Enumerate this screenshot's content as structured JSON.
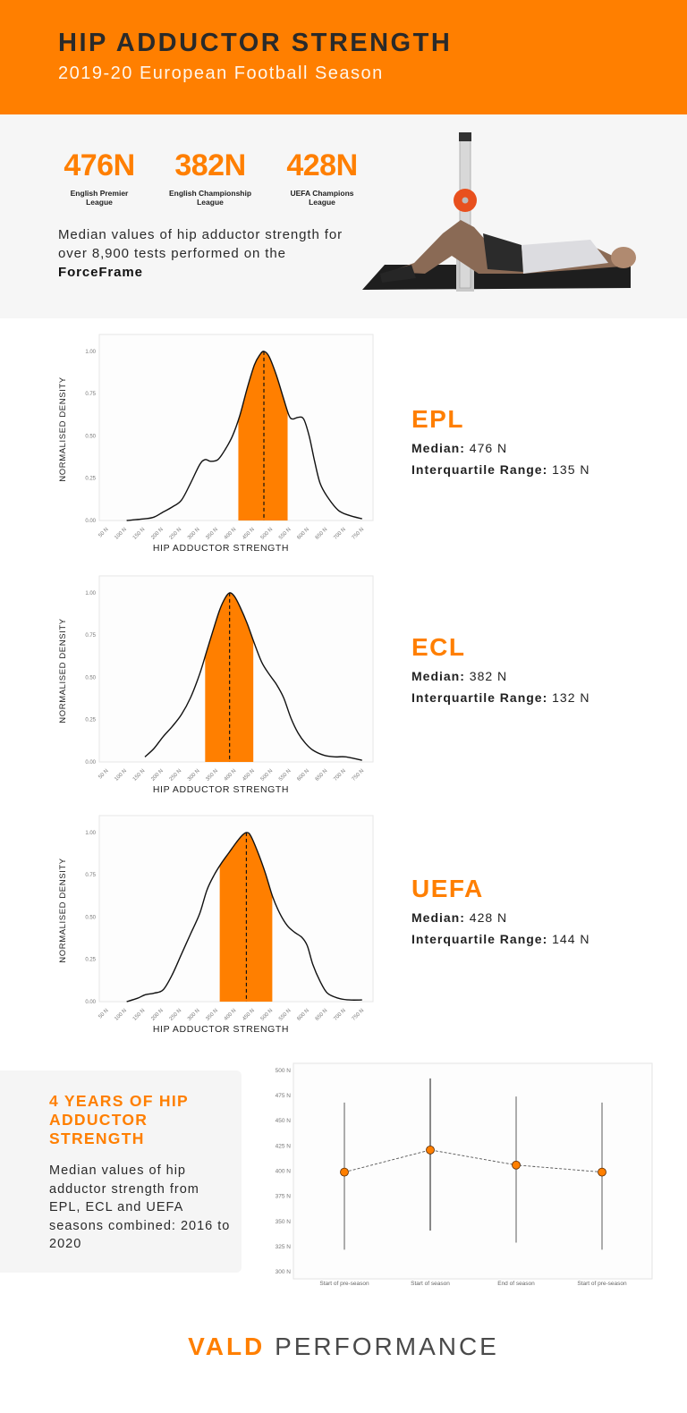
{
  "header": {
    "title": "HIP ADDUCTOR STRENGTH",
    "subtitle": "2019-20 European Football Season",
    "accent_color": "#ff7f00"
  },
  "intro": {
    "stats": [
      {
        "value": "476N",
        "label": "English Premier League"
      },
      {
        "value": "382N",
        "label": "English Championship League"
      },
      {
        "value": "428N",
        "label": "UEFA Champions League"
      }
    ],
    "description_prefix": "Median values of hip adductor strength for over 8,900 tests performed on the ",
    "description_bold": "ForceFrame",
    "photo_alt": "athlete-forceframe-test-photo"
  },
  "leagues": [
    {
      "name": "EPL",
      "median_label": "Median:",
      "median_value": "476 N",
      "iqr_label": "Interquartile Range:",
      "iqr_value": "135 N"
    },
    {
      "name": "ECL",
      "median_label": "Median:",
      "median_value": "382 N",
      "iqr_label": "Interquartile Range:",
      "iqr_value": "132 N"
    },
    {
      "name": "UEFA",
      "median_label": "Median:",
      "median_value": "428 N",
      "iqr_label": "Interquartile Range:",
      "iqr_value": "144 N"
    }
  ],
  "years_box": {
    "heading": "4 YEARS OF HIP ADDUCTOR STRENGTH",
    "text": "Median values of hip adductor strength from EPL, ECL and UEFA seasons combined: 2016 to 2020"
  },
  "footer": {
    "brand": "VALD",
    "suffix": "PERFORMANCE"
  },
  "chart_data": [
    {
      "type": "area",
      "title": "EPL",
      "xlabel": "HIP ADDUCTOR STRENGTH",
      "ylabel": "NORMALISED DENSITY",
      "xlim": [
        25,
        775
      ],
      "ylim": [
        0,
        1.1
      ],
      "x_ticks": [
        "50 N",
        "100 N",
        "150 N",
        "200 N",
        "250 N",
        "300 N",
        "350 N",
        "400 N",
        "450 N",
        "500 N",
        "550 N",
        "600 N",
        "650 N",
        "700 N",
        "750 N"
      ],
      "x_tick_values": [
        50,
        100,
        150,
        200,
        250,
        300,
        350,
        400,
        450,
        500,
        550,
        600,
        650,
        700,
        750
      ],
      "y_ticks": [
        "0.00",
        "0.25",
        "0.50",
        "0.75",
        "1.00"
      ],
      "y_tick_values": [
        0,
        0.25,
        0.5,
        0.75,
        1.0
      ],
      "x": [
        100,
        150,
        175,
        200,
        225,
        250,
        275,
        300,
        315,
        330,
        350,
        370,
        390,
        410,
        430,
        450,
        465,
        476,
        490,
        510,
        530,
        545,
        555,
        570,
        585,
        600,
        615,
        630,
        650,
        680,
        710,
        745
      ],
      "y": [
        0.0,
        0.01,
        0.02,
        0.05,
        0.08,
        0.12,
        0.22,
        0.33,
        0.36,
        0.35,
        0.36,
        0.42,
        0.5,
        0.62,
        0.78,
        0.92,
        0.98,
        1.0,
        0.97,
        0.86,
        0.72,
        0.62,
        0.6,
        0.61,
        0.6,
        0.5,
        0.35,
        0.22,
        0.14,
        0.06,
        0.03,
        0.01
      ],
      "iqr_shade": [
        406,
        541
      ],
      "median": 476
    },
    {
      "type": "area",
      "title": "ECL",
      "xlabel": "HIP ADDUCTOR STRENGTH",
      "ylabel": "NORMALISED DENSITY",
      "xlim": [
        25,
        775
      ],
      "ylim": [
        0,
        1.1
      ],
      "x_ticks": [
        "50 N",
        "100 N",
        "150 N",
        "200 N",
        "250 N",
        "300 N",
        "350 N",
        "400 N",
        "450 N",
        "500 N",
        "550 N",
        "600 N",
        "650 N",
        "700 N",
        "750 N"
      ],
      "x_tick_values": [
        50,
        100,
        150,
        200,
        250,
        300,
        350,
        400,
        450,
        500,
        550,
        600,
        650,
        700,
        750
      ],
      "y_ticks": [
        "0.00",
        "0.25",
        "0.50",
        "0.75",
        "1.00"
      ],
      "y_tick_values": [
        0,
        0.25,
        0.5,
        0.75,
        1.0
      ],
      "x": [
        150,
        175,
        200,
        225,
        250,
        275,
        300,
        320,
        340,
        355,
        370,
        382,
        395,
        410,
        430,
        450,
        470,
        490,
        510,
        530,
        550,
        570,
        590,
        610,
        640,
        670,
        700,
        745
      ],
      "y": [
        0.03,
        0.08,
        0.15,
        0.21,
        0.28,
        0.38,
        0.52,
        0.66,
        0.8,
        0.9,
        0.97,
        1.0,
        0.98,
        0.92,
        0.82,
        0.7,
        0.59,
        0.52,
        0.46,
        0.38,
        0.26,
        0.17,
        0.11,
        0.07,
        0.04,
        0.03,
        0.03,
        0.01
      ],
      "iqr_shade": [
        315,
        447
      ],
      "median": 382
    },
    {
      "type": "area",
      "title": "UEFA",
      "xlabel": "HIP ADDUCTOR STRENGTH",
      "ylabel": "NORMALISED DENSITY",
      "xlim": [
        25,
        775
      ],
      "ylim": [
        0,
        1.1
      ],
      "x_ticks": [
        "50 N",
        "100 N",
        "150 N",
        "200 N",
        "250 N",
        "300 N",
        "350 N",
        "400 N",
        "450 N",
        "500 N",
        "550 N",
        "600 N",
        "650 N",
        "700 N",
        "750 N"
      ],
      "x_tick_values": [
        50,
        100,
        150,
        200,
        250,
        300,
        350,
        400,
        450,
        500,
        550,
        600,
        650,
        700,
        750
      ],
      "y_ticks": [
        "0.00",
        "0.25",
        "0.50",
        "0.75",
        "1.00"
      ],
      "y_tick_values": [
        0,
        0.25,
        0.5,
        0.75,
        1.0
      ],
      "x": [
        100,
        130,
        150,
        175,
        200,
        225,
        250,
        275,
        300,
        320,
        340,
        360,
        380,
        400,
        415,
        428,
        440,
        460,
        480,
        500,
        520,
        540,
        560,
        580,
        595,
        610,
        630,
        650,
        680,
        710,
        745
      ],
      "y": [
        0.0,
        0.02,
        0.04,
        0.05,
        0.07,
        0.16,
        0.28,
        0.4,
        0.52,
        0.66,
        0.75,
        0.82,
        0.88,
        0.94,
        0.98,
        1.0,
        0.98,
        0.88,
        0.76,
        0.62,
        0.52,
        0.45,
        0.41,
        0.38,
        0.33,
        0.22,
        0.12,
        0.05,
        0.02,
        0.01,
        0.01
      ],
      "iqr_shade": [
        355,
        499
      ],
      "median": 428
    },
    {
      "type": "scatter",
      "title": "4 years of hip adductor strength",
      "xlabel": "",
      "ylabel": "",
      "categories": [
        "Start of pre-season",
        "Start of season",
        "End of season",
        "Start of pre-season"
      ],
      "values": [
        399,
        421,
        406,
        399
      ],
      "error_low": [
        322,
        341,
        329,
        322
      ],
      "error_high": [
        468,
        492,
        474,
        468
      ],
      "ylim": [
        293,
        507
      ],
      "y_ticks": [
        "300 N",
        "325 N",
        "350 N",
        "375 N",
        "400 N",
        "425 N",
        "450 N",
        "475 N",
        "500 N"
      ],
      "y_tick_values": [
        300,
        325,
        350,
        375,
        400,
        425,
        450,
        475,
        500
      ],
      "connector": "dashed"
    }
  ]
}
